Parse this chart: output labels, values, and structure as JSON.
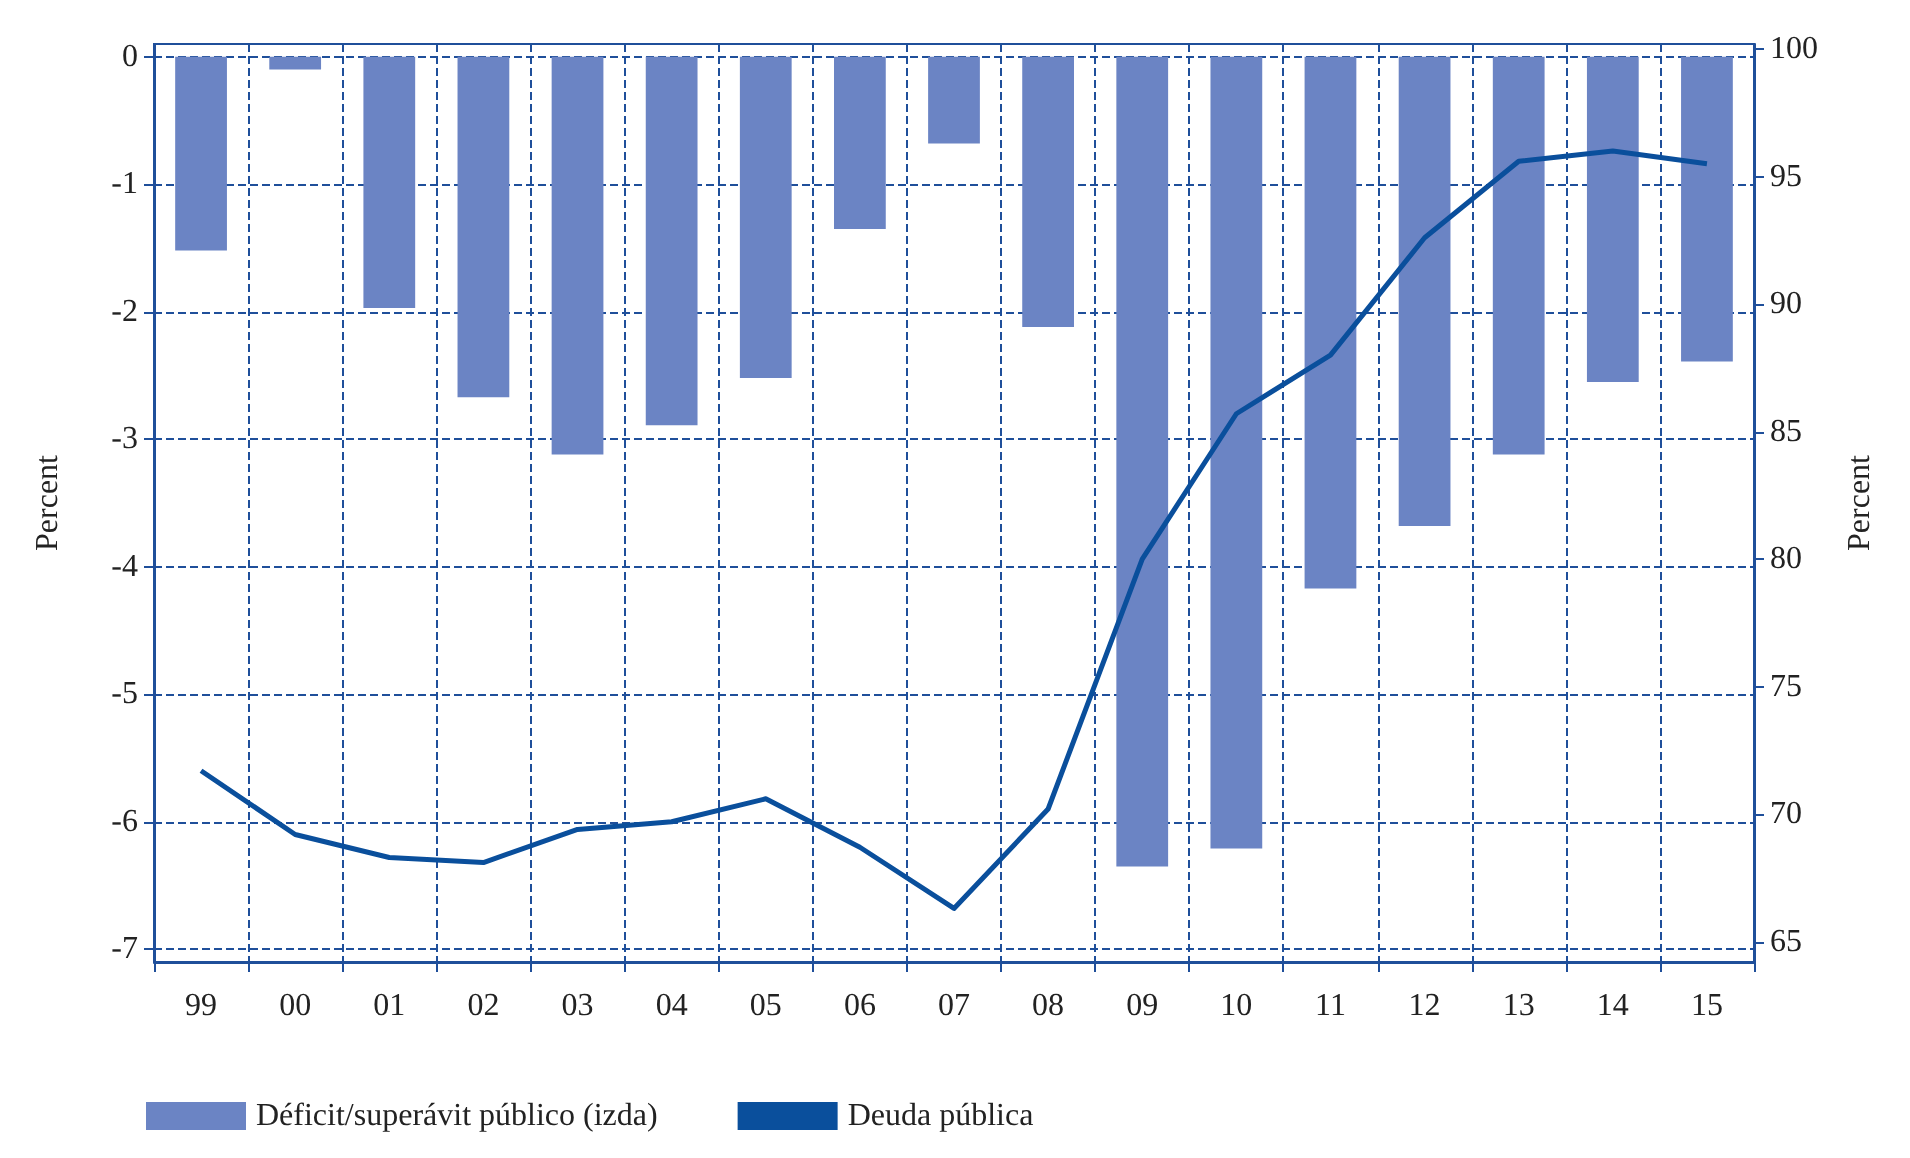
{
  "chart_data": {
    "type": "bar",
    "categories": [
      "99",
      "00",
      "01",
      "02",
      "03",
      "04",
      "05",
      "06",
      "07",
      "08",
      "09",
      "10",
      "11",
      "12",
      "13",
      "14",
      "15"
    ],
    "series": [
      {
        "name": "Déficit/superávit público (izda)",
        "color": "#6b84c4",
        "values": [
          -1.52,
          -0.1,
          -1.97,
          -2.67,
          -3.12,
          -2.89,
          -2.52,
          -1.35,
          -0.68,
          -2.12,
          -6.35,
          -6.21,
          -4.17,
          -3.68,
          -3.12,
          -2.55,
          -2.39
        ]
      },
      {
        "name": "Deuda pública",
        "type": "line",
        "axis": "y2",
        "color": "#0a4f9c",
        "values": [
          71.7,
          69.2,
          68.3,
          68.1,
          69.4,
          69.7,
          70.6,
          68.7,
          66.3,
          70.2,
          80.0,
          85.7,
          88.0,
          92.6,
          95.6,
          96.0,
          95.5
        ]
      }
    ],
    "ylabel": "Percent",
    "y2label": "Percent",
    "ylim": [
      -7.1,
      0.1
    ],
    "yticks": [
      0,
      -1,
      -2,
      -3,
      -4,
      -5,
      -6,
      -7
    ],
    "y2lim": [
      64.2,
      100.2
    ],
    "y2ticks": [
      65,
      70,
      75,
      80,
      85,
      90,
      95,
      100
    ],
    "grid": true,
    "legend": "bottom",
    "marker": "none",
    "line_style": "solid"
  }
}
